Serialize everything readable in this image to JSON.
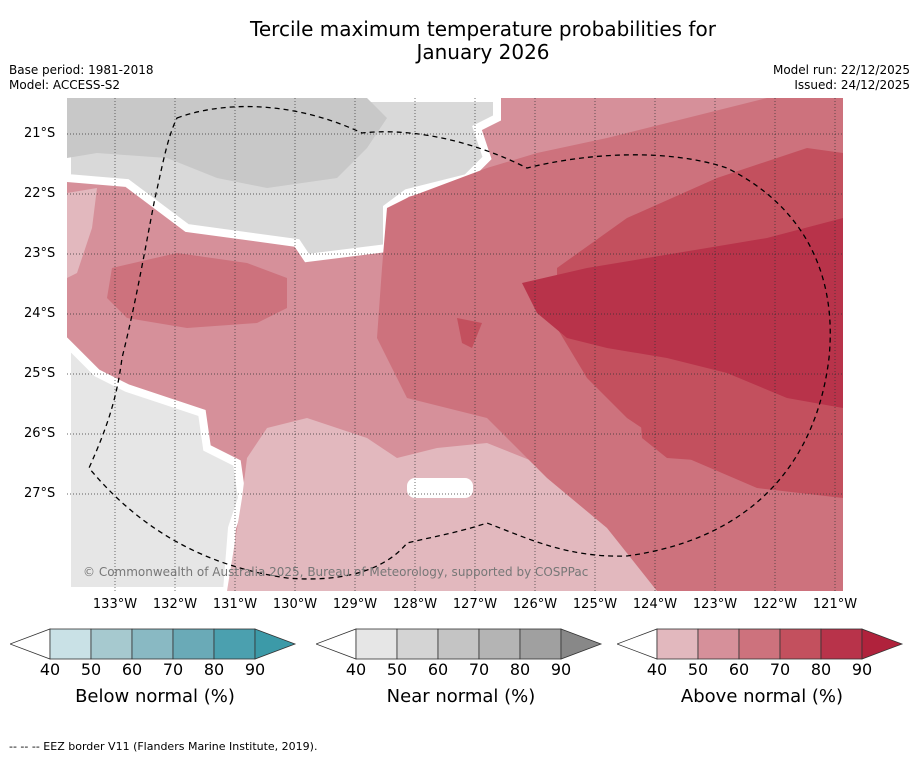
{
  "title_line1": "Tercile maximum temperature probabilities for",
  "title_line2": "January 2026",
  "base_period": "Base period: 1981-2018",
  "model": "Model: ACCESS-S2",
  "model_run": "Model run: 22/12/2025",
  "issued": "Issued: 24/12/2025",
  "copyright": "© Commonwealth of Australia 2025, Bureau of Meteorology, supported by COSPPac",
  "lat_labels": [
    "21°S",
    "22°S",
    "23°S",
    "24°S",
    "25°S",
    "26°S",
    "27°S"
  ],
  "lon_labels": [
    "133°W",
    "132°W",
    "131°W",
    "130°W",
    "129°W",
    "128°W",
    "127°W",
    "126°W",
    "125°W",
    "124°W",
    "123°W",
    "122°W",
    "121°W"
  ],
  "colorbars": [
    {
      "title": "Below normal (%)",
      "ticks": [
        "40",
        "50",
        "60",
        "70",
        "80",
        "90"
      ],
      "colors": [
        "#c9e1e6",
        "#a6c9cf",
        "#89b9c3",
        "#6aaab7",
        "#4ba0af"
      ],
      "over": "#3c9aa8"
    },
    {
      "title": "Near normal (%)",
      "ticks": [
        "40",
        "50",
        "60",
        "70",
        "80",
        "90"
      ],
      "colors": [
        "#e6e6e6",
        "#d4d4d4",
        "#c4c4c4",
        "#b4b4b4",
        "#a0a0a0"
      ],
      "over": "#888888"
    },
    {
      "title": "Above normal (%)",
      "ticks": [
        "40",
        "50",
        "60",
        "70",
        "80",
        "90"
      ],
      "colors": [
        "#e2b8be",
        "#d6909a",
        "#cd727d",
        "#c3505e",
        "#b8334a"
      ],
      "over": "#b0223c"
    }
  ],
  "footnote": "--  --  -- EEZ border V11 (Flanders Marine Institute, 2019)."
}
